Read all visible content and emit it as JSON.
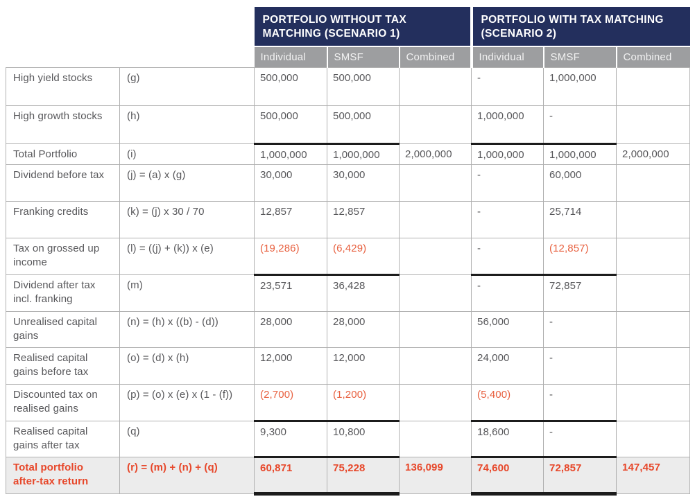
{
  "header": {
    "scenario1": {
      "title": "PORTFOLIO WITHOUT TAX MATCHING (SCENARIO 1)",
      "columns": [
        "Individual",
        "SMSF",
        "Combined"
      ]
    },
    "scenario2": {
      "title": "PORTFOLIO WITH TAX MATCHING (SCENARIO 2)",
      "columns": [
        "Individual",
        "SMSF",
        "Combined"
      ]
    }
  },
  "rows": [
    {
      "label": "High yield stocks",
      "formula": "(g)",
      "values": [
        "500,000",
        "500,000",
        "",
        "-",
        "1,000,000",
        ""
      ]
    },
    {
      "label": "High growth stocks",
      "formula": "(h)",
      "values": [
        "500,000",
        "500,000",
        "",
        "1,000,000",
        "-",
        ""
      ]
    },
    {
      "label": "Total Portfolio",
      "formula": "(i)",
      "values": [
        "1,000,000",
        "1,000,000",
        "2,000,000",
        "1,000,000",
        "1,000,000",
        "2,000,000"
      ]
    },
    {
      "label": "Dividend before tax",
      "formula": "(j) = (a) x (g)",
      "values": [
        "30,000",
        "30,000",
        "",
        "-",
        "60,000",
        ""
      ]
    },
    {
      "label": "Franking credits",
      "formula": "(k) = (j) x 30 / 70",
      "values": [
        "12,857",
        "12,857",
        "",
        "-",
        "25,714",
        ""
      ]
    },
    {
      "label": "Tax on grossed up income",
      "formula": "(l) = ((j) + (k)) x (e)",
      "values": [
        "(19,286)",
        "(6,429)",
        "",
        "-",
        "(12,857)",
        ""
      ]
    },
    {
      "label": "Dividend after tax incl. franking",
      "formula": "(m)",
      "values": [
        "23,571",
        "36,428",
        "",
        "-",
        "72,857",
        ""
      ]
    },
    {
      "label": "Unrealised capital gains",
      "formula": "(n) = (h) x ((b) - (d))",
      "values": [
        "28,000",
        "28,000",
        "",
        "56,000",
        "-",
        ""
      ]
    },
    {
      "label": "Realised capital gains before tax",
      "formula": "(o) = (d) x (h)",
      "values": [
        "12,000",
        "12,000",
        "",
        "24,000",
        "-",
        ""
      ]
    },
    {
      "label": "Discounted tax on realised gains",
      "formula": "(p) = (o) x (e) x (1 - (f))",
      "values": [
        "(2,700)",
        "(1,200)",
        "",
        "(5,400)",
        "-",
        ""
      ]
    },
    {
      "label": "Realised capital gains after tax",
      "formula": "(q)",
      "values": [
        "9,300",
        "10,800",
        "",
        "18,600",
        "-",
        ""
      ]
    },
    {
      "label": "Total portfolio after-tax return",
      "formula": "(r) = (m) + (n) + (q)",
      "values": [
        "60,871",
        "75,228",
        "136,099",
        "74,600",
        "72,857",
        "147,457"
      ]
    }
  ],
  "colors": {
    "header_navy": "#232f5d",
    "subheader_gray": "#9d9ea0",
    "thin_border_gray": "#b0b0b0",
    "thick_rule_black": "#1c1c1c",
    "body_text_gray": "#57575a",
    "negative_red": "#e8603f",
    "total_red": "#e7472a",
    "total_row_bg": "#ececec"
  }
}
